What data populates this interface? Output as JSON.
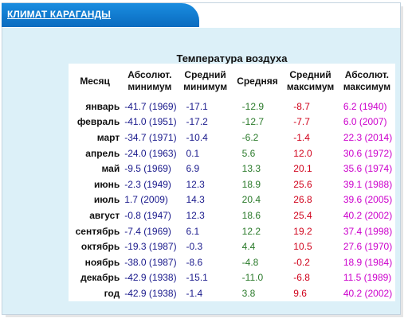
{
  "header": {
    "title": "КЛИМАТ КАРАГАНДЫ"
  },
  "table": {
    "caption": "Температура воздуха",
    "columns": {
      "month": "Месяц",
      "abs_min": [
        "Абсолют.",
        "минимум"
      ],
      "avg_min": [
        "Средний",
        "минимум"
      ],
      "avg": "Средняя",
      "avg_max": [
        "Средний",
        "максимум"
      ],
      "abs_max": [
        "Абсолют.",
        "максимум"
      ]
    },
    "rows": [
      {
        "month": "январь",
        "abs_min": "-41.7 (1969)",
        "avg_min": "-17.1",
        "avg": "-12.9",
        "avg_max": "-8.7",
        "abs_max": "6.2 (1940)"
      },
      {
        "month": "февраль",
        "abs_min": "-41.0 (1951)",
        "avg_min": "-17.2",
        "avg": "-12.7",
        "avg_max": "-7.7",
        "abs_max": "6.0 (2007)"
      },
      {
        "month": "март",
        "abs_min": "-34.7 (1971)",
        "avg_min": "-10.4",
        "avg": "-6.2",
        "avg_max": "-1.4",
        "abs_max": "22.3 (2014)"
      },
      {
        "month": "апрель",
        "abs_min": "-24.0 (1963)",
        "avg_min": "0.1",
        "avg": "5.6",
        "avg_max": "12.0",
        "abs_max": "30.6 (1972)"
      },
      {
        "month": "май",
        "abs_min": "-9.5 (1969)",
        "avg_min": "6.9",
        "avg": "13.3",
        "avg_max": "20.1",
        "abs_max": "35.6 (1974)"
      },
      {
        "month": "июнь",
        "abs_min": "-2.3 (1949)",
        "avg_min": "12.3",
        "avg": "18.9",
        "avg_max": "25.6",
        "abs_max": "39.1 (1988)"
      },
      {
        "month": "июль",
        "abs_min": "1.7 (2009)",
        "avg_min": "14.3",
        "avg": "20.4",
        "avg_max": "26.8",
        "abs_max": "39.6 (2005)"
      },
      {
        "month": "август",
        "abs_min": "-0.8 (1947)",
        "avg_min": "12.3",
        "avg": "18.6",
        "avg_max": "25.4",
        "abs_max": "40.2 (2002)"
      },
      {
        "month": "сентябрь",
        "abs_min": "-7.4 (1969)",
        "avg_min": "6.1",
        "avg": "12.2",
        "avg_max": "19.2",
        "abs_max": "37.4 (1998)"
      },
      {
        "month": "октябрь",
        "abs_min": "-19.3 (1987)",
        "avg_min": "-0.3",
        "avg": "4.4",
        "avg_max": "10.5",
        "abs_max": "27.6 (1970)"
      },
      {
        "month": "ноябрь",
        "abs_min": "-38.0 (1987)",
        "avg_min": "-8.6",
        "avg": "-4.8",
        "avg_max": "-0.2",
        "abs_max": "18.9 (1984)"
      },
      {
        "month": "декабрь",
        "abs_min": "-42.9 (1938)",
        "avg_min": "-15.1",
        "avg": "-11.0",
        "avg_max": "-6.8",
        "abs_max": "11.5 (1989)"
      },
      {
        "month": "год",
        "abs_min": "-42.9 (1938)",
        "avg_min": "-1.4",
        "avg": "3.8",
        "avg_max": "9.6",
        "abs_max": "40.2 (2002)"
      }
    ]
  },
  "colors": {
    "tab": "#0a6bbf",
    "panel": "#dcf0f8",
    "abs_min": "#1a1a8c",
    "avg_min": "#1a1a8c",
    "avg": "#2a7a2a",
    "avg_max": "#d0001a",
    "abs_max": "#cc00cc"
  }
}
